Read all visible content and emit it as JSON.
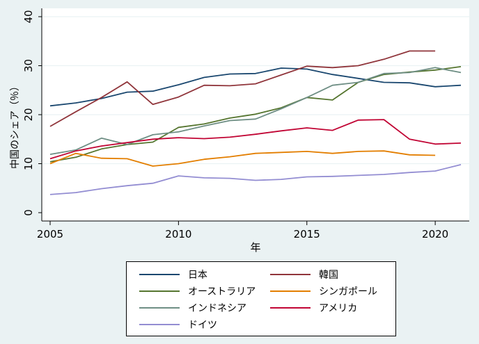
{
  "chart_data": {
    "type": "line",
    "title": "",
    "xlabel": "年",
    "ylabel": "中国のシェア（％）",
    "xlim": [
      2005,
      2021
    ],
    "ylim": [
      0,
      40
    ],
    "xticks": [
      2005,
      2010,
      2015,
      2020
    ],
    "yticks": [
      0,
      10,
      20,
      30,
      40
    ],
    "grid": "horizontal",
    "legend_position": "bottom",
    "series": [
      {
        "name": "日本",
        "color": "#1a476f",
        "x": [
          2005,
          2006,
          2007,
          2008,
          2009,
          2010,
          2011,
          2012,
          2013,
          2014,
          2015,
          2016,
          2017,
          2018,
          2019,
          2020,
          2021
        ],
        "values": [
          21.8,
          22.4,
          23.3,
          24.6,
          24.8,
          26.1,
          27.6,
          28.3,
          28.4,
          29.5,
          29.3,
          28.2,
          27.4,
          26.6,
          26.5,
          25.7,
          26.0
        ]
      },
      {
        "name": "韓国",
        "color": "#90353b",
        "x": [
          2005,
          2006,
          2007,
          2008,
          2009,
          2010,
          2011,
          2012,
          2013,
          2014,
          2015,
          2016,
          2017,
          2018,
          2019,
          2020
        ],
        "values": [
          17.6,
          20.6,
          23.5,
          26.7,
          22.1,
          23.6,
          26.0,
          25.9,
          26.3,
          28.1,
          29.9,
          29.6,
          30.0,
          31.3,
          33.0,
          33.0
        ]
      },
      {
        "name": "オーストラリア",
        "color": "#55752f",
        "x": [
          2005,
          2006,
          2007,
          2008,
          2009,
          2010,
          2011,
          2012,
          2013,
          2014,
          2015,
          2016,
          2017,
          2018,
          2019,
          2020,
          2021
        ],
        "values": [
          10.4,
          11.3,
          13.0,
          13.9,
          14.4,
          17.4,
          18.1,
          19.3,
          20.1,
          21.4,
          23.5,
          23.0,
          26.6,
          28.2,
          28.7,
          29.1,
          29.8
        ]
      },
      {
        "name": "シンガポール",
        "color": "#e37e00",
        "x": [
          2005,
          2006,
          2007,
          2008,
          2009,
          2010,
          2011,
          2012,
          2013,
          2014,
          2015,
          2016,
          2017,
          2018,
          2019,
          2020
        ],
        "values": [
          10.0,
          12.1,
          11.1,
          11.0,
          9.5,
          10.0,
          10.9,
          11.4,
          12.1,
          12.3,
          12.5,
          12.1,
          12.5,
          12.6,
          11.8,
          11.7
        ]
      },
      {
        "name": "インドネシア",
        "color": "#6e8e84",
        "x": [
          2005,
          2006,
          2007,
          2008,
          2009,
          2010,
          2011,
          2012,
          2013,
          2014,
          2015,
          2016,
          2017,
          2018,
          2019,
          2020,
          2021
        ],
        "values": [
          11.9,
          12.8,
          15.2,
          13.9,
          15.9,
          16.5,
          17.7,
          18.8,
          19.1,
          21.2,
          23.5,
          26.0,
          26.6,
          28.4,
          28.6,
          29.6,
          28.6
        ]
      },
      {
        "name": "アメリカ",
        "color": "#c10534",
        "x": [
          2005,
          2006,
          2007,
          2008,
          2009,
          2010,
          2011,
          2012,
          2013,
          2014,
          2015,
          2016,
          2017,
          2018,
          2019,
          2020,
          2021
        ],
        "values": [
          11.0,
          12.6,
          13.6,
          14.3,
          15.0,
          15.3,
          15.1,
          15.4,
          16.0,
          16.7,
          17.3,
          16.8,
          18.9,
          19.0,
          15.0,
          14.0,
          14.2
        ]
      },
      {
        "name": "ドイツ",
        "color": "#938dd2",
        "x": [
          2005,
          2006,
          2007,
          2008,
          2009,
          2010,
          2011,
          2012,
          2013,
          2014,
          2015,
          2016,
          2017,
          2018,
          2019,
          2020,
          2021
        ],
        "values": [
          3.7,
          4.1,
          4.9,
          5.5,
          6.0,
          7.5,
          7.1,
          7.0,
          6.6,
          6.8,
          7.3,
          7.4,
          7.6,
          7.8,
          8.2,
          8.5,
          9.8
        ]
      }
    ]
  }
}
